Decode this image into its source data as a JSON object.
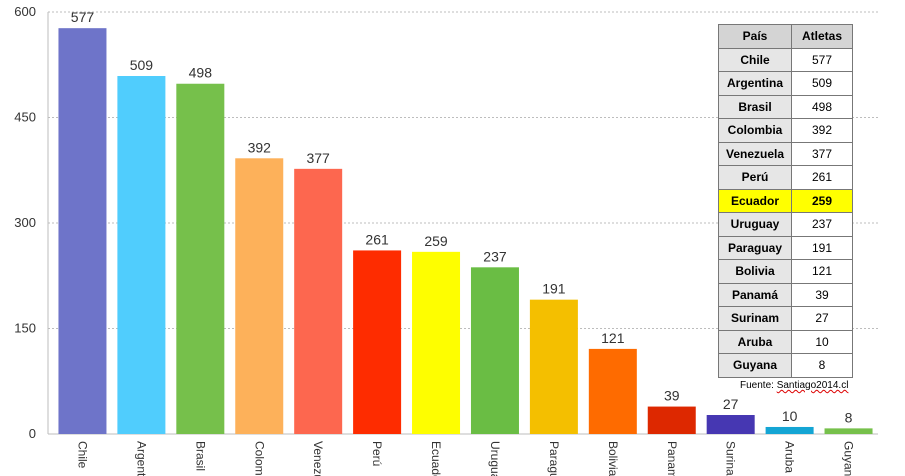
{
  "chart_data": {
    "type": "bar",
    "categories": [
      "Chile",
      "Argentina",
      "Brasil",
      "Colombia",
      "Venezuela",
      "Perú",
      "Ecuador",
      "Uruguay",
      "Paraguay",
      "Bolivia",
      "Panamá",
      "Surinam",
      "Aruba",
      "Guyana"
    ],
    "values": [
      577,
      509,
      498,
      392,
      377,
      261,
      259,
      237,
      191,
      121,
      39,
      27,
      10,
      8
    ],
    "colors": [
      "#6e74c9",
      "#50cdfd",
      "#76c04b",
      "#fdb15a",
      "#fd674f",
      "#fe2c00",
      "#fefe00",
      "#6abd44",
      "#f4bf00",
      "#fe6b00",
      "#dd2800",
      "#4637b2",
      "#14a5d4",
      "#76c04b"
    ],
    "ylim": [
      0,
      600
    ],
    "yticks": [
      0,
      150,
      300,
      450,
      600
    ],
    "grid": true,
    "title": "",
    "xlabel": "",
    "ylabel": ""
  },
  "table": {
    "headers": [
      "País",
      "Atletas"
    ],
    "rows": [
      {
        "country": "Chile",
        "count": "577"
      },
      {
        "country": "Argentina",
        "count": "509"
      },
      {
        "country": "Brasil",
        "count": "498"
      },
      {
        "country": "Colombia",
        "count": "392"
      },
      {
        "country": "Venezuela",
        "count": "377"
      },
      {
        "country": "Perú",
        "count": "261"
      },
      {
        "country": "Ecuador",
        "count": "259",
        "highlight": true
      },
      {
        "country": "Uruguay",
        "count": "237"
      },
      {
        "country": "Paraguay",
        "count": "191"
      },
      {
        "country": "Bolivia",
        "count": "121"
      },
      {
        "country": "Panamá",
        "count": "39"
      },
      {
        "country": "Surinam",
        "count": "27"
      },
      {
        "country": "Aruba",
        "count": "10"
      },
      {
        "country": "Guyana",
        "count": "8"
      }
    ],
    "highlight_color": "#ffff00"
  },
  "source": {
    "prefix": "Fuente: ",
    "site": "Santiago2014.cl"
  }
}
